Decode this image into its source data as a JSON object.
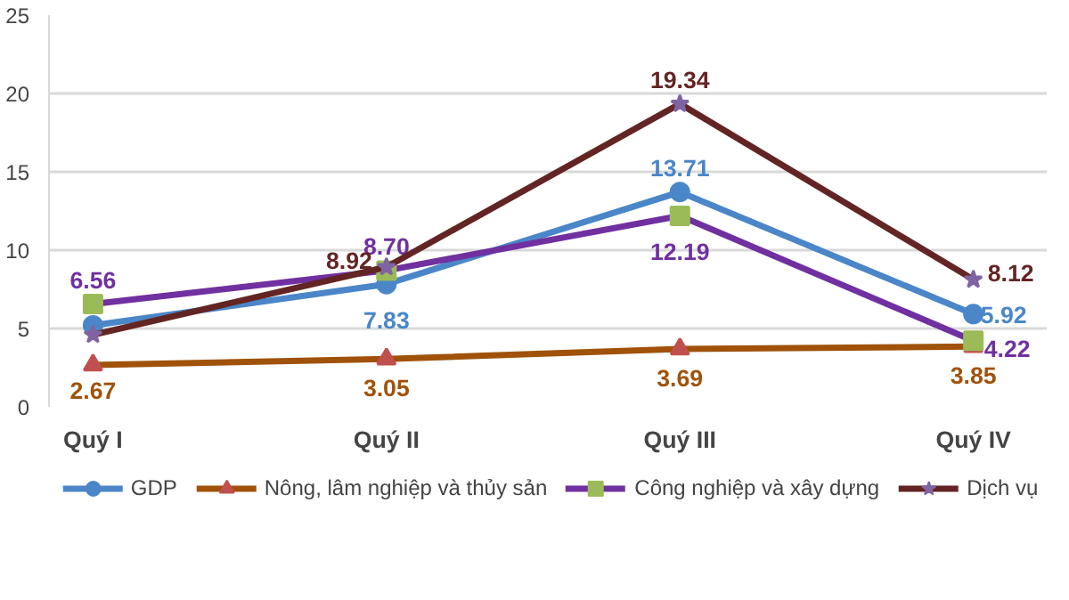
{
  "chart_data": {
    "type": "line",
    "categories": [
      "Quý I",
      "Quý II",
      "Quý III",
      "Quý IV"
    ],
    "ylim": [
      0,
      25
    ],
    "yticks": [
      0,
      5,
      10,
      15,
      20,
      25
    ],
    "grid": "y",
    "legend": "bottom",
    "line_style": "solid",
    "series": [
      {
        "name": "GDP",
        "color": "#4a86c8",
        "marker": "circle",
        "values": [
          5.2,
          7.83,
          13.71,
          5.92
        ],
        "value_labels": [
          null,
          "7.83",
          "13.71",
          "5.92"
        ]
      },
      {
        "name": "Nông, lâm nghiệp và thủy sản",
        "color": "#a0520a",
        "marker": "triangle",
        "values": [
          2.67,
          3.05,
          3.69,
          3.85
        ],
        "value_labels": [
          "2.67",
          "3.05",
          "3.69",
          "3.85"
        ]
      },
      {
        "name": "Công nghiệp và xây dựng",
        "color": "#7030a0",
        "marker": "square",
        "values": [
          6.56,
          8.7,
          12.19,
          4.22
        ],
        "value_labels": [
          "6.56",
          "8.70",
          "12.19",
          "4.22"
        ]
      },
      {
        "name": "Dịch vụ",
        "color": "#632523",
        "marker": "star",
        "values": [
          4.6,
          8.92,
          19.34,
          8.12
        ],
        "value_labels": [
          null,
          "8.92",
          "19.34",
          "8.12"
        ]
      }
    ]
  }
}
